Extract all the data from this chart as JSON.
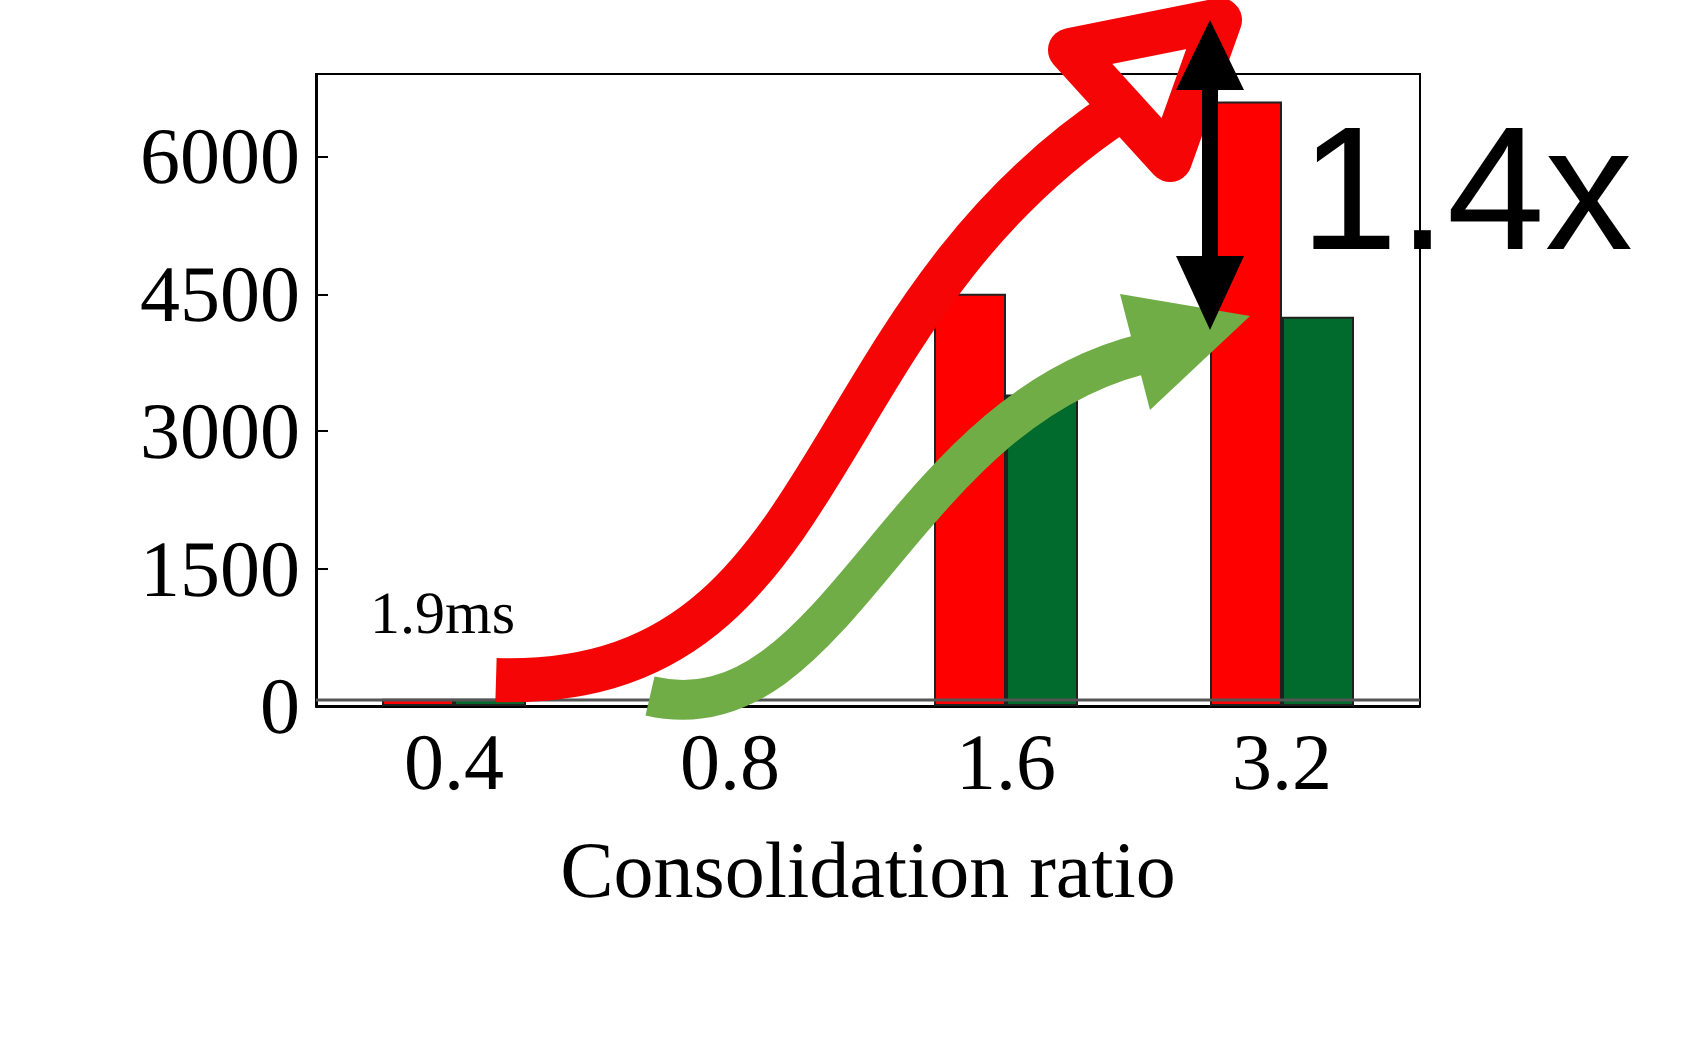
{
  "chart_data": {
    "type": "bar",
    "xlabel": "Consolidation ratio",
    "categories": [
      "0.4",
      "0.8",
      "1.6",
      "3.2"
    ],
    "series": [
      {
        "color": "#ff0000",
        "values": [
          80,
          null,
          4500,
          6600
        ]
      },
      {
        "color": "#006b2d",
        "values": [
          80,
          null,
          3400,
          4250
        ]
      }
    ],
    "ylim": [
      0,
      6900
    ],
    "yticks": [
      0,
      1500,
      3000,
      4500,
      6000
    ],
    "grid": false,
    "ref_lines": [
      {
        "axis": "y",
        "value": 70,
        "color": "#555555"
      }
    ],
    "annotations": [
      "1.9ms",
      "1.4x"
    ]
  }
}
